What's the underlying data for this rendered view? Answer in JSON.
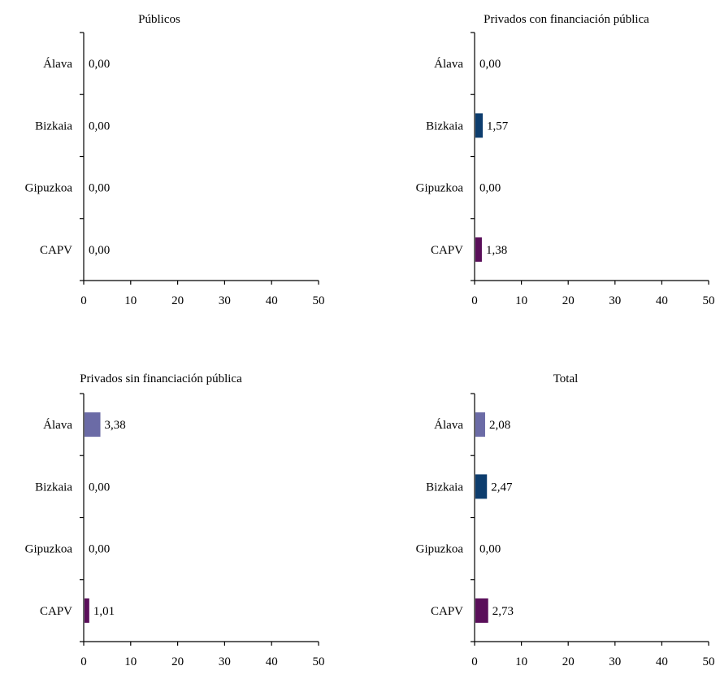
{
  "chart_data": [
    {
      "type": "bar",
      "orientation": "horizontal",
      "title": "Públicos",
      "categories": [
        "Álava",
        "Bizkaia",
        "Gipuzkoa",
        "CAPV"
      ],
      "values": [
        0.0,
        0.0,
        0.0,
        0.0
      ],
      "value_labels": [
        "0,00",
        "0,00",
        "0,00",
        "0,00"
      ],
      "xlim": [
        0,
        50
      ],
      "xticks": [
        "0",
        "10",
        "20",
        "30",
        "40",
        "50"
      ],
      "grid": false,
      "legend": "none"
    },
    {
      "type": "bar",
      "orientation": "horizontal",
      "title": "Privados con financiación pública",
      "categories": [
        "Álava",
        "Bizkaia",
        "Gipuzkoa",
        "CAPV"
      ],
      "values": [
        0.0,
        1.57,
        0.0,
        1.38
      ],
      "value_labels": [
        "0,00",
        "1,57",
        "0,00",
        "1,38"
      ],
      "xlim": [
        0,
        50
      ],
      "xticks": [
        "0",
        "10",
        "20",
        "30",
        "40",
        "50"
      ],
      "grid": false,
      "legend": "none"
    },
    {
      "type": "bar",
      "orientation": "horizontal",
      "title": "Privados sin financiación pública",
      "categories": [
        "Álava",
        "Bizkaia",
        "Gipuzkoa",
        "CAPV"
      ],
      "values": [
        3.38,
        0.0,
        0.0,
        1.01
      ],
      "value_labels": [
        "3,38",
        "0,00",
        "0,00",
        "1,01"
      ],
      "xlim": [
        0,
        50
      ],
      "xticks": [
        "0",
        "10",
        "20",
        "30",
        "40",
        "50"
      ],
      "grid": false,
      "legend": "none"
    },
    {
      "type": "bar",
      "orientation": "horizontal",
      "title": "Total",
      "categories": [
        "Álava",
        "Bizkaia",
        "Gipuzkoa",
        "CAPV"
      ],
      "values": [
        2.08,
        2.47,
        0.0,
        2.73
      ],
      "value_labels": [
        "2,08",
        "2,47",
        "0,00",
        "2,73"
      ],
      "xlim": [
        0,
        50
      ],
      "xticks": [
        "0",
        "10",
        "20",
        "30",
        "40",
        "50"
      ],
      "grid": false,
      "legend": "none"
    }
  ],
  "colors": {
    "category": [
      "#6b6ba6",
      "#0d3d6e",
      "#8a2a8a",
      "#5a0f5a"
    ],
    "axis": "#000000",
    "text": "#000000"
  }
}
